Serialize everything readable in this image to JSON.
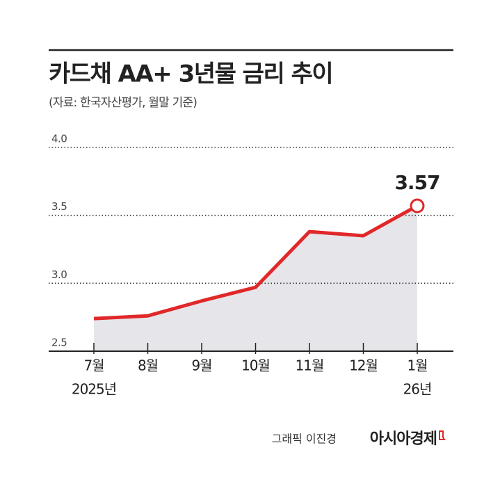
{
  "chart_data": {
    "type": "line",
    "title": "카드채 AA+ 3년물 금리 추이",
    "subtitle": "(자료: 한국자산평가, 월말 기준)",
    "categories": [
      "7월",
      "8월",
      "9월",
      "10월",
      "11월",
      "12월",
      "1월"
    ],
    "year_labels": [
      "2025년",
      null,
      null,
      null,
      null,
      null,
      "26년"
    ],
    "values": [
      2.74,
      2.76,
      2.87,
      2.97,
      3.38,
      3.35,
      3.57
    ],
    "color": "#e0282a",
    "area_color": "#e6e6ea",
    "ylim": [
      2.5,
      4.0
    ],
    "yticks": [
      {
        "value": 2.5,
        "label": "2.5"
      },
      {
        "value": 3,
        "label": "3.0"
      },
      3.5,
      {
        "value": 4,
        "label": "4.0"
      }
    ],
    "grid": true,
    "credit": "그래픽 이진경",
    "publisher": "아시아경제"
  }
}
